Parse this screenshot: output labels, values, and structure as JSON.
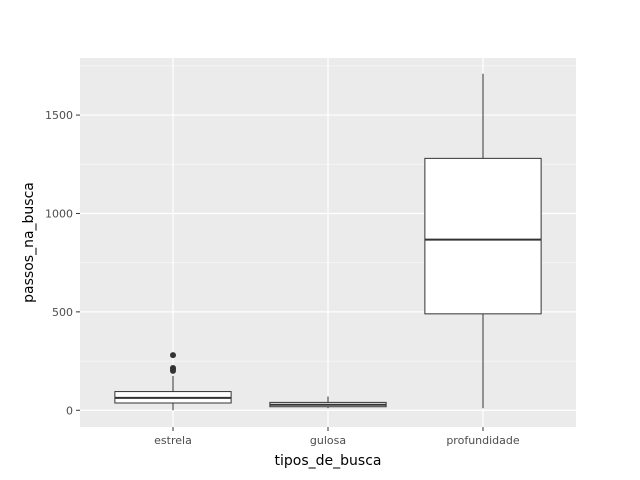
{
  "chart_data": {
    "type": "boxplot",
    "xlabel": "tipos_de_busca",
    "ylabel": "passos_na_busca",
    "categories": [
      "estrela",
      "gulosa",
      "profundidade"
    ],
    "ylim": [
      -85,
      1790
    ],
    "yticks": [
      0,
      500,
      1000,
      1500
    ],
    "grid": true,
    "boxes": [
      {
        "category": "estrela",
        "whisker_low": 0,
        "q1": 37,
        "median": 63,
        "q3": 95,
        "whisker_high": 175,
        "outliers": [
          200,
          210,
          215,
          280
        ]
      },
      {
        "category": "gulosa",
        "whisker_low": 10,
        "q1": 18,
        "median": 28,
        "q3": 40,
        "whisker_high": 70,
        "outliers": []
      },
      {
        "category": "profundidade",
        "whisker_low": 10,
        "q1": 490,
        "median": 867,
        "q3": 1280,
        "whisker_high": 1710,
        "outliers": []
      }
    ],
    "colors": {
      "panel": "#ebebeb",
      "major_grid": "#ffffff",
      "minor_grid": "#f5f5f5",
      "box_fill": "#ffffff",
      "box_line": "#333333",
      "tick_text": "#4d4d4d"
    }
  }
}
